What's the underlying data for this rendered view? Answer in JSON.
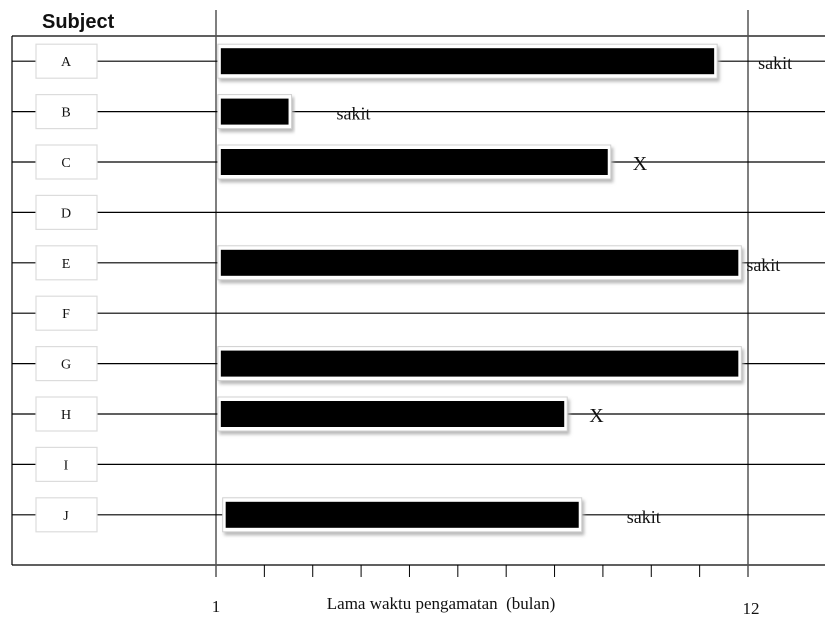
{
  "chart_data": {
    "type": "bar",
    "title": "Subject",
    "xlabel": "Lama waktu pengamatan  (bulan)",
    "xlim": [
      1,
      12
    ],
    "xticks": [
      "1",
      "12"
    ],
    "grid": false,
    "categories": [
      "A",
      "B",
      "C",
      "D",
      "E",
      "F",
      "G",
      "H",
      "I",
      "J"
    ],
    "bars": [
      {
        "subject": "A",
        "start": 1.1,
        "end": 11.3,
        "annotation": "sakit"
      },
      {
        "subject": "B",
        "start": 1.1,
        "end": 2.5,
        "annotation": "sakit"
      },
      {
        "subject": "C",
        "start": 1.1,
        "end": 9.1,
        "annotation": "X"
      },
      {
        "subject": "D",
        "start": null,
        "end": null,
        "annotation": ""
      },
      {
        "subject": "E",
        "start": 1.1,
        "end": 11.8,
        "annotation": "sakit"
      },
      {
        "subject": "F",
        "start": null,
        "end": null,
        "annotation": ""
      },
      {
        "subject": "G",
        "start": 1.1,
        "end": 11.8,
        "annotation": ""
      },
      {
        "subject": "H",
        "start": 1.1,
        "end": 8.2,
        "annotation": "X"
      },
      {
        "subject": "I",
        "start": null,
        "end": null,
        "annotation": ""
      },
      {
        "subject": "J",
        "start": 1.2,
        "end": 8.5,
        "annotation": "sakit"
      }
    ],
    "bar_color": "#000000"
  }
}
